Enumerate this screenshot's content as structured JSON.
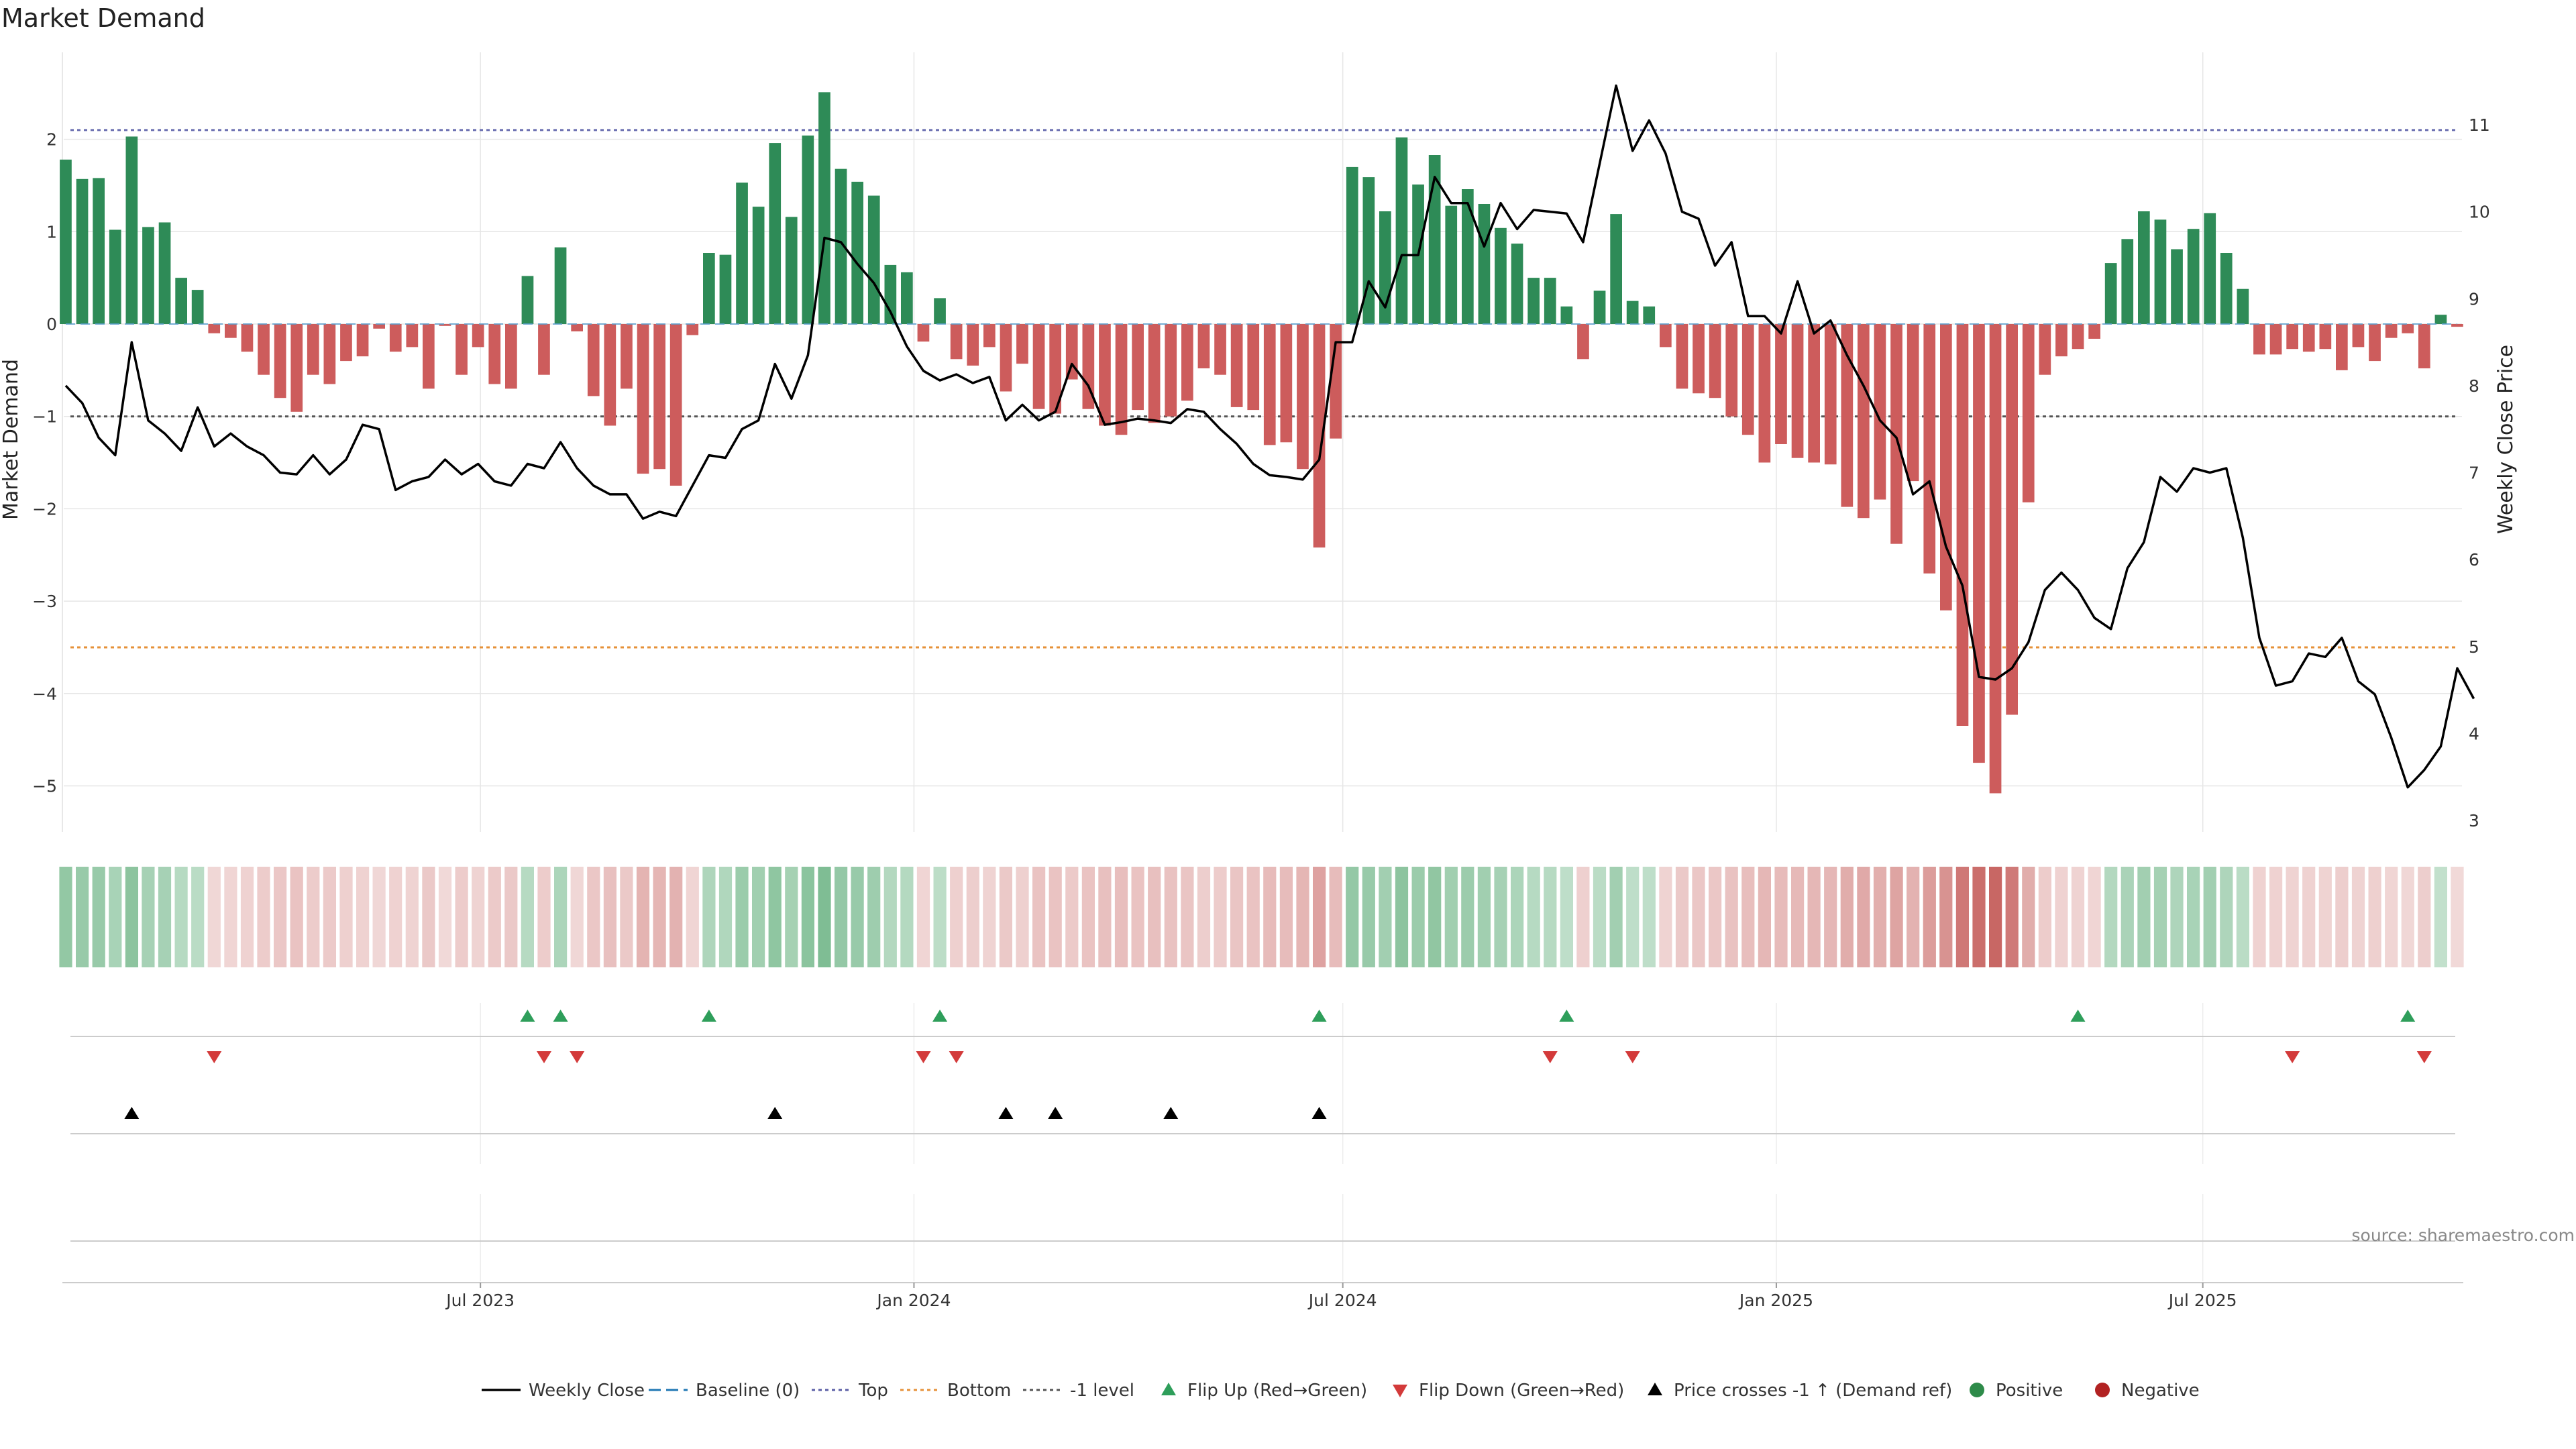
{
  "chart_data": {
    "type": "bar",
    "title": "Market Demand",
    "ylabel": "Market Demand",
    "y2label": "Weekly Close Price",
    "ylim": [
      -5.5,
      2.6
    ],
    "y2lim": [
      3.0,
      11.6
    ],
    "yticks": [
      -5,
      -4,
      -3,
      -2,
      -1,
      0,
      1,
      2
    ],
    "y2ticks": [
      3,
      4,
      5,
      6,
      7,
      8,
      9,
      10,
      11
    ],
    "x_start": "2023-01-06",
    "x_step_days": 7,
    "xticks": [
      {
        "date": "2023-07-01",
        "label": "Jul 2023"
      },
      {
        "date": "2024-01-01",
        "label": "Jan 2024"
      },
      {
        "date": "2024-07-01",
        "label": "Jul 2024"
      },
      {
        "date": "2025-01-01",
        "label": "Jan 2025"
      },
      {
        "date": "2025-07-01",
        "label": "Jul 2025"
      }
    ],
    "reference_lines": {
      "top": 2.1,
      "bottom": -3.5,
      "minus_one": -1.0,
      "baseline": 0
    },
    "demand": [
      1.78,
      1.57,
      1.58,
      1.02,
      2.03,
      1.05,
      1.1,
      0.5,
      0.37,
      -0.1,
      -0.15,
      -0.3,
      -0.55,
      -0.8,
      -0.95,
      -0.55,
      -0.65,
      -0.4,
      -0.35,
      -0.05,
      -0.3,
      -0.25,
      -0.7,
      -0.02,
      -0.55,
      -0.25,
      -0.65,
      -0.7,
      0.52,
      -0.55,
      0.83,
      -0.08,
      -0.78,
      -1.1,
      -0.7,
      -1.62,
      -1.57,
      -1.75,
      -0.12,
      0.77,
      0.75,
      1.53,
      1.27,
      1.96,
      1.16,
      2.04,
      2.51,
      1.68,
      1.54,
      1.39,
      0.64,
      0.56,
      -0.19,
      0.28,
      -0.38,
      -0.45,
      -0.25,
      -0.73,
      -0.43,
      -0.92,
      -0.97,
      -0.6,
      -0.92,
      -1.1,
      -1.2,
      -0.93,
      -1.07,
      -1.0,
      -0.83,
      -0.48,
      -0.55,
      -0.9,
      -0.93,
      -1.31,
      -1.28,
      -1.57,
      -2.42,
      -1.24,
      1.7,
      1.59,
      1.22,
      2.02,
      1.51,
      1.83,
      1.28,
      1.46,
      1.3,
      1.04,
      0.87,
      0.5,
      0.5,
      0.19,
      -0.38,
      0.36,
      1.19,
      0.25,
      0.19,
      -0.25,
      -0.7,
      -0.75,
      -0.8,
      -1.0,
      -1.2,
      -1.5,
      -1.3,
      -1.45,
      -1.5,
      -1.52,
      -1.98,
      -2.1,
      -1.9,
      -2.38,
      -1.7,
      -2.7,
      -3.1,
      -4.35,
      -4.75,
      -5.08,
      -4.23,
      -1.93,
      -0.55,
      -0.35,
      -0.27,
      -0.16,
      0.66,
      0.92,
      1.22,
      1.13,
      0.81,
      1.03,
      1.2,
      0.77,
      0.38,
      -0.33,
      -0.33,
      -0.27,
      -0.3,
      -0.27,
      -0.5,
      -0.25,
      -0.4,
      -0.15,
      -0.1,
      -0.48,
      0.1,
      -0.03
    ],
    "weekly_close": [
      8.0,
      7.8,
      7.4,
      7.2,
      8.5,
      7.6,
      7.45,
      7.25,
      7.75,
      7.3,
      7.45,
      7.3,
      7.2,
      7.0,
      6.98,
      7.2,
      6.98,
      7.15,
      7.55,
      7.5,
      6.8,
      6.9,
      6.95,
      7.15,
      6.98,
      7.1,
      6.9,
      6.85,
      7.1,
      7.05,
      7.35,
      7.05,
      6.85,
      6.75,
      6.75,
      6.47,
      6.55,
      6.5,
      6.85,
      7.2,
      7.17,
      7.5,
      7.6,
      8.25,
      7.85,
      8.35,
      9.7,
      9.65,
      9.4,
      9.18,
      8.85,
      8.45,
      8.17,
      8.06,
      8.13,
      8.03,
      8.1,
      7.6,
      7.78,
      7.6,
      7.7,
      8.25,
      8.0,
      7.55,
      7.58,
      7.62,
      7.6,
      7.57,
      7.73,
      7.7,
      7.5,
      7.33,
      7.1,
      6.97,
      6.95,
      6.92,
      7.15,
      8.5,
      8.5,
      9.2,
      8.9,
      9.5,
      9.5,
      10.4,
      10.1,
      10.1,
      9.6,
      10.1,
      9.8,
      10.02,
      10.0,
      9.98,
      9.65,
      10.55,
      11.45,
      10.7,
      11.05,
      10.67,
      10.0,
      9.92,
      9.38,
      9.65,
      8.8,
      8.8,
      8.6,
      9.2,
      8.6,
      8.75,
      8.35,
      8.0,
      7.6,
      7.4,
      6.75,
      6.9,
      6.15,
      5.7,
      4.65,
      4.62,
      4.75,
      5.05,
      5.65,
      5.85,
      5.65,
      5.33,
      5.2,
      5.9,
      6.2,
      6.95,
      6.78,
      7.05,
      7.0,
      7.05,
      6.25,
      5.1,
      4.55,
      4.6,
      4.92,
      4.88,
      5.1,
      4.6,
      4.45,
      3.95,
      3.38,
      3.58,
      3.85,
      4.75,
      4.4
    ],
    "flip_up_index": [
      28,
      30,
      39,
      53,
      76,
      91,
      122,
      142
    ],
    "flip_down_index": [
      9,
      29,
      31,
      52,
      54,
      90,
      95,
      135,
      143
    ],
    "price_cross_index": [
      4,
      43,
      57,
      60,
      67,
      76
    ],
    "legend": [
      {
        "label": "Weekly Close",
        "kind": "line",
        "color": "#000000"
      },
      {
        "label": "Baseline (0)",
        "kind": "dash",
        "color": "#1f77b4"
      },
      {
        "label": "Top",
        "kind": "dot",
        "color": "#5b5ea6"
      },
      {
        "label": "Bottom",
        "kind": "dot",
        "color": "#e69138"
      },
      {
        "label": "-1 level",
        "kind": "dot",
        "color": "#555555"
      },
      {
        "label": "Flip Up (Red→Green)",
        "kind": "tri-up",
        "color": "#2e9e5a"
      },
      {
        "label": "Flip Down (Green→Red)",
        "kind": "tri-down",
        "color": "#d33a3a"
      },
      {
        "label": "Price crosses -1 ↑ (Demand ref)",
        "kind": "tri-up",
        "color": "#000000"
      },
      {
        "label": "Positive",
        "kind": "circle",
        "color": "#2e8b4a"
      },
      {
        "label": "Negative",
        "kind": "circle",
        "color": "#b22222"
      }
    ],
    "source": "source: sharemaestro.com"
  },
  "colors": {
    "positive": "#2e8b57",
    "negative": "#cd5c5c",
    "price": "#000000",
    "grid": "#e6e6e6"
  }
}
